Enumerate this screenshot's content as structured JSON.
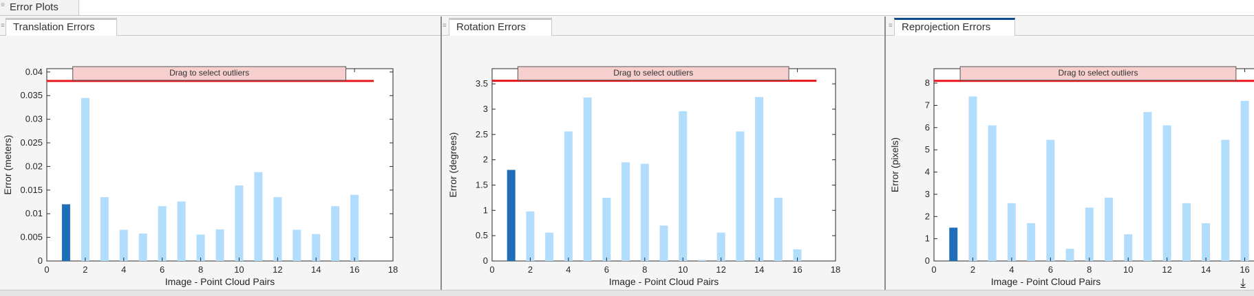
{
  "window": {
    "outer_tab": "Error Plots"
  },
  "tabs": [
    "Translation Errors",
    "Rotation Errors",
    "Reprojection Errors"
  ],
  "active_tab": "Reprojection Errors",
  "overlay_label": "Drag to select outliers",
  "colors": {
    "selected_bar": "#1f6fb8",
    "bar": "#b3ddfc",
    "threshold": "#e8161b",
    "overlay": "#f7cfcf",
    "active_tab": "#0e4d8c"
  },
  "icons": {
    "download": "download-icon",
    "grip": "grip-icon"
  },
  "chart_data": [
    {
      "type": "bar",
      "title": "",
      "xlabel": "Image - Point Cloud Pairs",
      "ylabel": "Error (meters)",
      "x": [
        1,
        2,
        3,
        4,
        5,
        6,
        7,
        8,
        9,
        10,
        11,
        12,
        13,
        14,
        15,
        16
      ],
      "values": [
        0.012,
        0.0345,
        0.0135,
        0.0066,
        0.0058,
        0.0116,
        0.0126,
        0.0056,
        0.0067,
        0.016,
        0.0188,
        0.0135,
        0.0066,
        0.0057,
        0.0116,
        0.014
      ],
      "selected": [
        1
      ],
      "xlim": [
        0,
        18
      ],
      "ylim": [
        0,
        0.0407
      ],
      "xticks": [
        "0",
        "2",
        "4",
        "6",
        "8",
        "10",
        "12",
        "14",
        "16",
        "18"
      ],
      "yticks": [
        "0",
        "0.005",
        "0.01",
        "0.015",
        "0.02",
        "0.025",
        "0.03",
        "0.035",
        "0.04"
      ],
      "threshold": 0.0381
    },
    {
      "type": "bar",
      "title": "",
      "xlabel": "Image - Point Cloud Pairs",
      "ylabel": "Error (degrees)",
      "x": [
        1,
        2,
        3,
        4,
        5,
        6,
        7,
        8,
        9,
        10,
        11,
        12,
        13,
        14,
        15,
        16
      ],
      "values": [
        1.8,
        0.98,
        0.56,
        2.56,
        3.23,
        1.25,
        1.95,
        1.92,
        0.7,
        2.96,
        0.02,
        0.56,
        2.56,
        3.24,
        1.25,
        0.23
      ],
      "selected": [
        1
      ],
      "xlim": [
        0,
        18
      ],
      "ylim": [
        0,
        3.8
      ],
      "xticks": [
        "0",
        "2",
        "4",
        "6",
        "8",
        "10",
        "12",
        "14",
        "16",
        "18"
      ],
      "yticks": [
        "0",
        "0.5",
        "1",
        "1.5",
        "2",
        "2.5",
        "3",
        "3.5"
      ],
      "threshold": 3.56
    },
    {
      "type": "bar",
      "title": "",
      "xlabel": "Image - Point Cloud Pairs",
      "ylabel": "Error (pixels)",
      "x": [
        1,
        2,
        3,
        4,
        5,
        6,
        7,
        8,
        9,
        10,
        11,
        12,
        13,
        14,
        15,
        16
      ],
      "values": [
        1.5,
        7.4,
        6.1,
        2.6,
        1.7,
        5.45,
        0.55,
        2.4,
        2.85,
        1.2,
        6.7,
        6.1,
        2.6,
        1.7,
        5.45,
        7.2
      ],
      "selected": [
        1
      ],
      "xlim": [
        0,
        18
      ],
      "ylim": [
        0,
        8.65
      ],
      "xticks": [
        "0",
        "2",
        "4",
        "6",
        "8",
        "10",
        "12",
        "14",
        "16"
      ],
      "yticks": [
        "0",
        "1",
        "2",
        "3",
        "4",
        "5",
        "6",
        "7",
        "8"
      ],
      "threshold": 8.1
    }
  ]
}
